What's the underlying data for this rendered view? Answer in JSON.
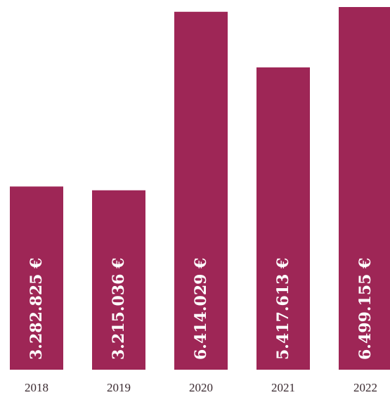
{
  "chart_data": {
    "type": "bar",
    "categories": [
      "2018",
      "2019",
      "2020",
      "2021",
      "2022"
    ],
    "values": [
      3282825,
      3215036,
      6414029,
      5417613,
      6499155
    ],
    "data_labels": [
      "3.282.825 €",
      "3.215.036 €",
      "6.414.029 €",
      "5.417.613 €",
      "6.499.155 €"
    ],
    "title": "",
    "xlabel": "",
    "ylabel": "",
    "ylim": [
      0,
      6499155
    ],
    "grid": false,
    "legend": "none",
    "bar_color": "#9e2656",
    "label_color": "#ffffff"
  }
}
